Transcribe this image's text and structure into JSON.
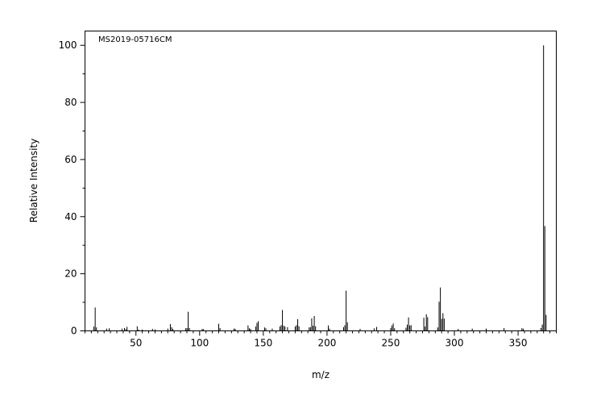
{
  "chart_data": {
    "type": "bar",
    "title": "",
    "annotation": "MS2019-05716CM",
    "xlabel": "m/z",
    "ylabel": "Relative Intensity",
    "xlim": [
      10,
      380
    ],
    "ylim": [
      0,
      105
    ],
    "x_ticks": [
      50,
      100,
      150,
      200,
      250,
      300,
      350
    ],
    "y_ticks": [
      0,
      20,
      40,
      60,
      80,
      100
    ],
    "grid": false,
    "bar_color": "#000000",
    "series": [
      {
        "x": [
          17,
          18,
          19,
          27,
          29,
          39,
          41,
          42,
          43,
          51,
          52,
          55,
          63,
          65,
          75,
          77,
          78,
          79,
          89,
          90,
          91,
          92,
          102,
          103,
          115,
          116,
          127,
          128,
          138,
          139,
          140,
          144,
          145,
          146,
          151,
          152,
          157,
          163,
          164,
          165,
          166,
          167,
          169,
          175,
          176,
          177,
          178,
          186,
          187,
          188,
          189,
          190,
          191,
          201,
          202,
          213,
          214,
          215,
          216,
          226,
          237,
          239,
          250,
          251,
          252,
          253,
          262,
          263,
          264,
          265,
          266,
          276,
          277,
          278,
          279,
          287,
          288,
          289,
          290,
          291,
          292,
          303,
          314,
          325,
          339,
          353,
          354,
          368,
          369,
          370,
          371,
          372
        ],
        "values": [
          1.5,
          8.2,
          1.2,
          0.8,
          0.9,
          0.8,
          1.0,
          0.6,
          1.4,
          1.6,
          0.5,
          0.5,
          0.7,
          0.5,
          0.8,
          2.4,
          1.3,
          0.7,
          0.9,
          1.0,
          6.7,
          1.0,
          0.7,
          0.6,
          2.5,
          1.0,
          0.8,
          0.7,
          1.9,
          0.9,
          0.7,
          1.5,
          2.8,
          3.4,
          1.2,
          0.9,
          0.8,
          1.5,
          2.0,
          7.3,
          1.8,
          1.5,
          1.3,
          1.5,
          2.0,
          4.1,
          1.6,
          1.2,
          1.3,
          4.4,
          1.8,
          5.2,
          1.6,
          1.9,
          0.8,
          1.3,
          2.0,
          14.1,
          3.0,
          0.7,
          0.9,
          1.4,
          1.0,
          1.9,
          2.6,
          0.9,
          1.1,
          2.2,
          4.7,
          1.9,
          2.0,
          4.6,
          1.5,
          5.8,
          4.8,
          1.2,
          10.2,
          15.2,
          4.2,
          6.2,
          4.3,
          0.7,
          0.8,
          0.8,
          1.0,
          0.9,
          0.8,
          1.0,
          2.2,
          100.0,
          36.7,
          5.6
        ]
      }
    ]
  }
}
